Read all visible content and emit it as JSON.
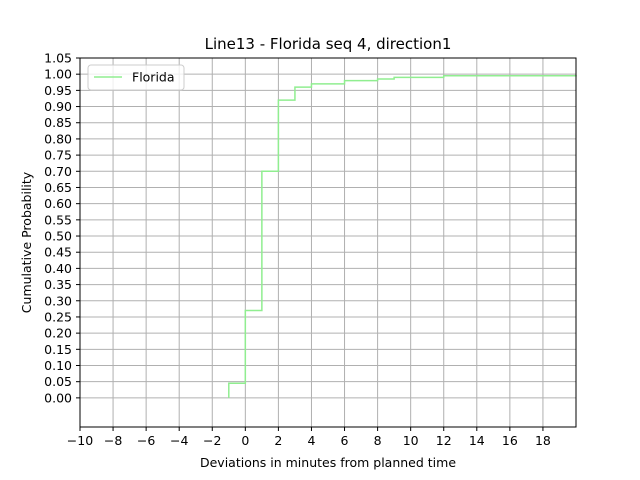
{
  "chart_data": {
    "type": "line",
    "step": true,
    "title": "Line13 - Florida seq 4, direction1",
    "xlabel": "Deviations in minutes from planned time",
    "ylabel": "Cumulative Probability",
    "xlim": [
      -10,
      20
    ],
    "ylim": [
      -0.09,
      1.05
    ],
    "x_ticks": [
      -10,
      -8,
      -6,
      -4,
      -2,
      0,
      2,
      4,
      6,
      8,
      10,
      12,
      14,
      16,
      18
    ],
    "x_tick_labels": [
      "−10",
      "−8",
      "−6",
      "−4",
      "−2",
      "0",
      "2",
      "4",
      "6",
      "8",
      "10",
      "12",
      "14",
      "16",
      "18"
    ],
    "y_ticks": [
      0.0,
      0.05,
      0.1,
      0.15,
      0.2,
      0.25,
      0.3,
      0.35,
      0.4,
      0.45,
      0.5,
      0.55,
      0.6,
      0.65,
      0.7,
      0.75,
      0.8,
      0.85,
      0.9,
      0.95,
      1.0,
      1.05
    ],
    "y_tick_labels": [
      "0.00",
      "0.05",
      "0.10",
      "0.15",
      "0.20",
      "0.25",
      "0.30",
      "0.35",
      "0.40",
      "0.45",
      "0.50",
      "0.55",
      "0.60",
      "0.65",
      "0.70",
      "0.75",
      "0.80",
      "0.85",
      "0.90",
      "0.95",
      "1.00",
      "1.05"
    ],
    "grid": true,
    "legend_position": "top-left",
    "series": [
      {
        "name": "Florida",
        "color": "#90ee90",
        "x": [
          -1,
          0,
          1,
          2,
          3,
          4,
          6,
          8,
          9,
          12,
          20
        ],
        "y": [
          0.045,
          0.27,
          0.7,
          0.92,
          0.96,
          0.97,
          0.98,
          0.985,
          0.99,
          0.995,
          0.998
        ]
      }
    ]
  }
}
